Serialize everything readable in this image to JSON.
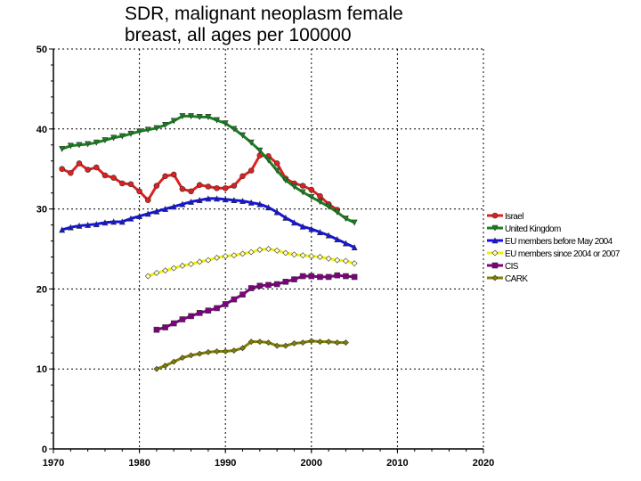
{
  "chart_data": {
    "type": "line",
    "title": "SDR, malignant neoplasm female breast, all ages per 100000",
    "title_lines": [
      "SDR, malignant neoplasm female",
      "breast, all ages per 100000"
    ],
    "xlabel": "",
    "ylabel": "",
    "xlim": [
      1970,
      2020
    ],
    "ylim": [
      0,
      50
    ],
    "xticks": [
      1970,
      1980,
      1990,
      2000,
      2010,
      2020
    ],
    "yticks": [
      0,
      10,
      20,
      30,
      40,
      50
    ],
    "grid": true,
    "legend_position": "right",
    "series": [
      {
        "name": "Israel",
        "color": "#e02020",
        "marker": "circle",
        "x_start": 1971,
        "values": [
          35.0,
          34.5,
          35.7,
          34.9,
          35.2,
          34.2,
          33.9,
          33.2,
          33.1,
          32.2,
          31.1,
          32.9,
          34.1,
          34.3,
          32.5,
          32.2,
          33.0,
          32.8,
          32.6,
          32.6,
          32.9,
          34.1,
          34.8,
          36.7,
          36.6,
          35.7,
          33.8,
          33.2,
          32.9,
          32.4,
          31.6,
          30.6,
          29.9
        ]
      },
      {
        "name": "United Kingdom",
        "color": "#1a8020",
        "marker": "triangle-down",
        "x_start": 1971,
        "values": [
          37.5,
          37.9,
          38.0,
          38.1,
          38.3,
          38.6,
          38.9,
          39.1,
          39.4,
          39.7,
          39.9,
          40.1,
          40.5,
          41.0,
          41.6,
          41.6,
          41.5,
          41.5,
          41.1,
          40.7,
          40.0,
          39.2,
          38.3,
          37.3,
          36.1,
          34.8,
          33.6,
          32.8,
          32.1,
          31.5,
          30.9,
          30.3,
          29.6,
          28.8,
          28.3
        ]
      },
      {
        "name": "EU members before May 2004",
        "color": "#1414e0",
        "marker": "triangle-up",
        "x_start": 1971,
        "values": [
          27.4,
          27.7,
          27.9,
          28.0,
          28.1,
          28.3,
          28.4,
          28.4,
          28.8,
          29.1,
          29.4,
          29.7,
          30.0,
          30.3,
          30.6,
          30.9,
          31.1,
          31.3,
          31.3,
          31.2,
          31.1,
          31.0,
          30.8,
          30.6,
          30.2,
          29.6,
          28.9,
          28.3,
          27.8,
          27.5,
          27.1,
          26.7,
          26.2,
          25.7,
          25.2
        ]
      },
      {
        "name": "EU members since 2004 or 2007",
        "color": "#f0f000",
        "marker": "diamond-open",
        "x_start": 1981,
        "values": [
          21.6,
          22.0,
          22.3,
          22.6,
          22.9,
          23.1,
          23.4,
          23.6,
          23.9,
          24.1,
          24.2,
          24.4,
          24.6,
          24.9,
          25.0,
          24.8,
          24.5,
          24.3,
          24.2,
          24.1,
          24.0,
          23.8,
          23.6,
          23.5,
          23.2
        ]
      },
      {
        "name": "CIS",
        "color": "#800080",
        "marker": "square",
        "x_start": 1982,
        "values": [
          14.9,
          15.2,
          15.7,
          16.2,
          16.6,
          17.0,
          17.3,
          17.6,
          18.1,
          18.7,
          19.3,
          20.1,
          20.4,
          20.5,
          20.6,
          20.9,
          21.2,
          21.6,
          21.6,
          21.5,
          21.5,
          21.7,
          21.6,
          21.5
        ]
      },
      {
        "name": "CARK",
        "color": "#808000",
        "marker": "diamond",
        "x_start": 1982,
        "values": [
          10.0,
          10.4,
          10.9,
          11.4,
          11.7,
          11.9,
          12.1,
          12.2,
          12.2,
          12.3,
          12.6,
          13.4,
          13.4,
          13.3,
          12.9,
          12.9,
          13.2,
          13.3,
          13.5,
          13.4,
          13.4,
          13.3,
          13.3
        ]
      }
    ]
  }
}
